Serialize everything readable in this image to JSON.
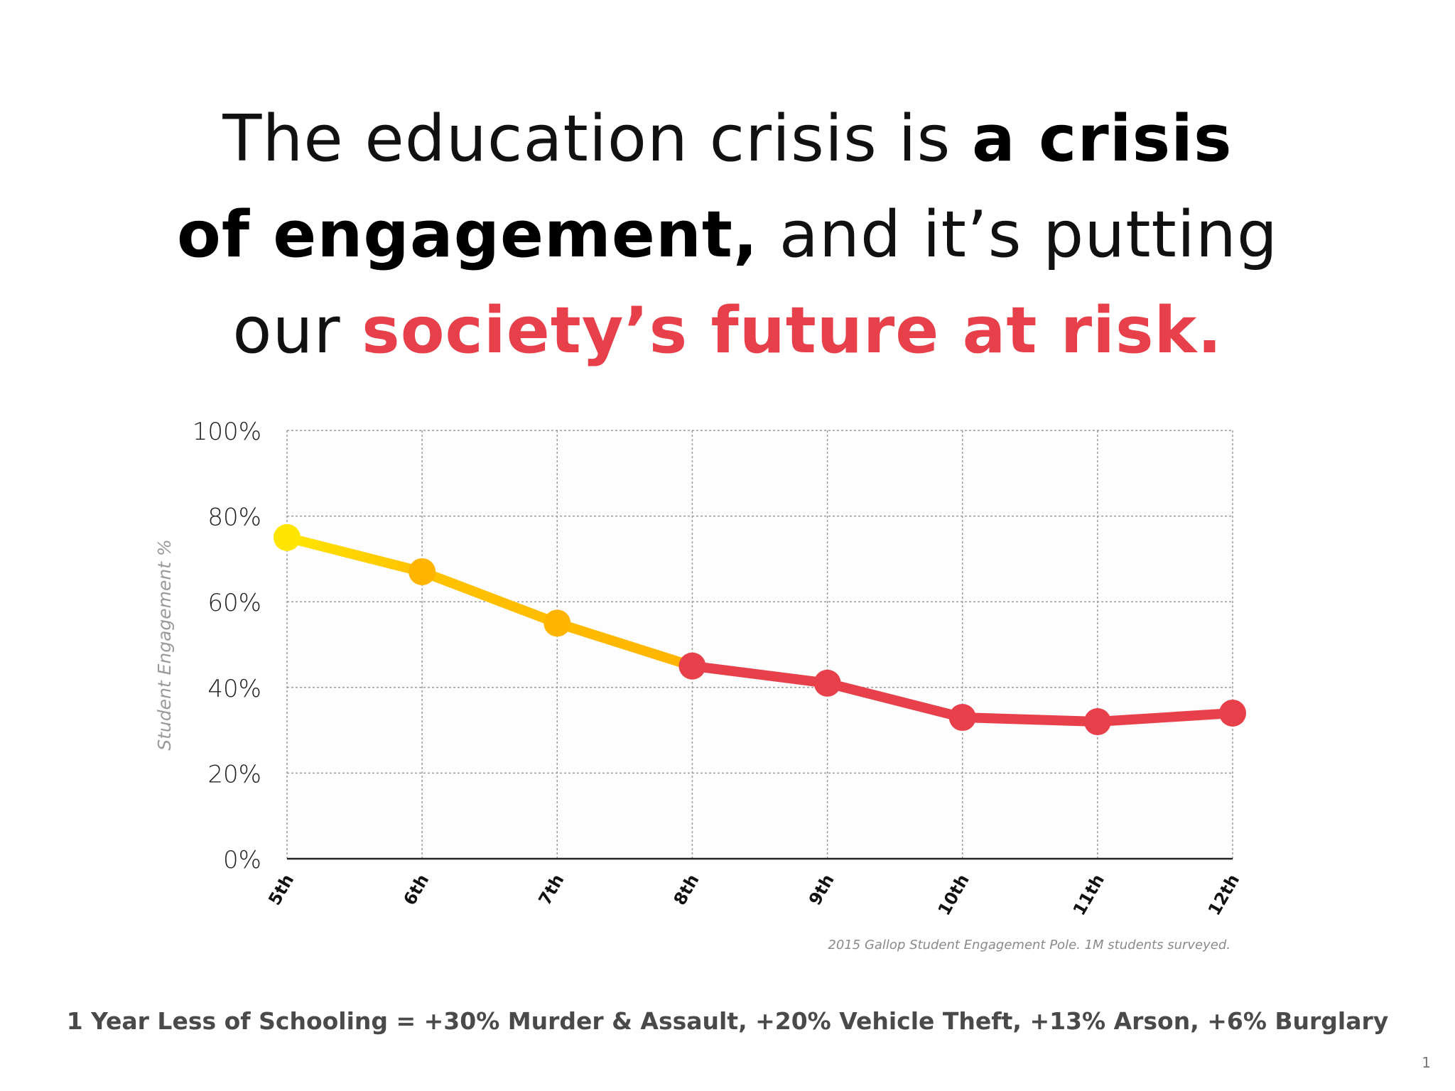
{
  "headline": {
    "line1": {
      "normal": "The education crisis is ",
      "bold": "a crisis"
    },
    "line2": {
      "bold": "of engagement,",
      "normal": " and it’s putting"
    },
    "line3": {
      "normal": "our ",
      "accent": "society’s future at risk."
    }
  },
  "colors": {
    "accent": "#e8404b",
    "yellow": "#ffe600",
    "orange": "#ffb400",
    "red": "#e8404b",
    "grid": "#9a9a9a",
    "axis": "#222222"
  },
  "chart_data": {
    "type": "line",
    "title": "",
    "xlabel": "",
    "ylabel": "Student Engagement %",
    "categories": [
      "5th",
      "6th",
      "7th",
      "8th",
      "9th",
      "10th",
      "11th",
      "12th"
    ],
    "values": [
      75,
      67,
      55,
      45,
      41,
      33,
      32,
      34
    ],
    "ylim": [
      0,
      100
    ],
    "yticks": [
      "0%",
      "20%",
      "40%",
      "60%",
      "80%",
      "100%"
    ],
    "ytick_values": [
      0,
      20,
      40,
      60,
      80,
      100
    ],
    "grid": true,
    "point_colors": [
      "#ffe600",
      "#ffb400",
      "#ffb400",
      "#e8404b",
      "#e8404b",
      "#e8404b",
      "#e8404b",
      "#e8404b"
    ]
  },
  "footnote": "2015 Gallop Student Engagement Pole. 1M students surveyed.",
  "bottom_stat": "1 Year Less of Schooling =  +30% Murder & Assault, +20% Vehicle Theft, +13% Arson, +6% Burglary",
  "page_number": "1"
}
